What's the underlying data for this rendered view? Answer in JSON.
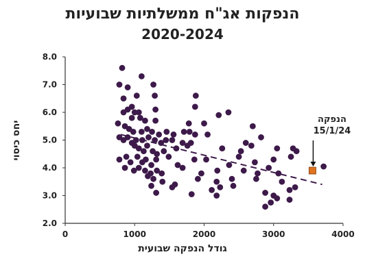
{
  "chart_data": {
    "type": "scatter",
    "title": "הנפקות אג\"ח ממשלתיות שבועיות",
    "subtitle": "2020-2024",
    "xlabel": "גודל הנפקה שבועית",
    "ylabel": "יחס כיסוי",
    "xlim": [
      0,
      4000
    ],
    "ylim": [
      2.0,
      8.0
    ],
    "xticks": [
      "0",
      "1000",
      "2000",
      "3000",
      "4000"
    ],
    "yticks": [
      "2.0",
      "3.0",
      "4.0",
      "5.0",
      "6.0",
      "7.0",
      "8.0"
    ],
    "grid": false,
    "colors": {
      "points": "#3d1a4a",
      "highlight": "#e0731f",
      "trend": "#3d1a4a"
    },
    "highlight_point": {
      "x": 3560,
      "y": 3.9
    },
    "annotation": [
      "הנפקה",
      "15/1/24"
    ],
    "trendline": {
      "x": [
        800,
        3700
      ],
      "y": [
        5.2,
        3.4
      ]
    },
    "points": [
      [
        820,
        7.6
      ],
      [
        1100,
        7.3
      ],
      [
        780,
        7.0
      ],
      [
        1270,
        7.0
      ],
      [
        900,
        6.9
      ],
      [
        840,
        6.5
      ],
      [
        1030,
        6.6
      ],
      [
        1290,
        6.6
      ],
      [
        1880,
        6.6
      ],
      [
        960,
        6.2
      ],
      [
        840,
        6.0
      ],
      [
        900,
        6.1
      ],
      [
        1000,
        6.0
      ],
      [
        1060,
        6.0
      ],
      [
        1300,
        6.1
      ],
      [
        1870,
        6.2
      ],
      [
        2350,
        6.0
      ],
      [
        960,
        5.8
      ],
      [
        1080,
        5.8
      ],
      [
        1150,
        5.7
      ],
      [
        1300,
        5.7
      ],
      [
        1780,
        5.6
      ],
      [
        2000,
        5.6
      ],
      [
        2210,
        5.9
      ],
      [
        760,
        5.6
      ],
      [
        860,
        5.5
      ],
      [
        920,
        5.4
      ],
      [
        980,
        5.3
      ],
      [
        1100,
        5.3
      ],
      [
        1180,
        5.4
      ],
      [
        1250,
        5.3
      ],
      [
        1350,
        5.2
      ],
      [
        1460,
        5.3
      ],
      [
        1560,
        5.2
      ],
      [
        1710,
        5.3
      ],
      [
        1790,
        5.3
      ],
      [
        1870,
        5.2
      ],
      [
        2050,
        5.2
      ],
      [
        2700,
        5.5
      ],
      [
        780,
        5.1
      ],
      [
        840,
        5.0
      ],
      [
        900,
        5.1
      ],
      [
        960,
        4.9
      ],
      [
        1020,
        5.0
      ],
      [
        1110,
        5.0
      ],
      [
        1200,
        5.1
      ],
      [
        1290,
        5.0
      ],
      [
        1380,
        4.9
      ],
      [
        1450,
        5.0
      ],
      [
        1540,
        5.0
      ],
      [
        1690,
        4.9
      ],
      [
        1810,
        4.9
      ],
      [
        2600,
        4.9
      ],
      [
        2820,
        5.1
      ],
      [
        1000,
        4.8
      ],
      [
        1060,
        4.7
      ],
      [
        1130,
        4.6
      ],
      [
        1180,
        4.8
      ],
      [
        1260,
        4.6
      ],
      [
        1320,
        4.5
      ],
      [
        1420,
        4.6
      ],
      [
        1600,
        4.7
      ],
      [
        1760,
        4.8
      ],
      [
        2260,
        4.7
      ],
      [
        2530,
        4.6
      ],
      [
        2680,
        4.8
      ],
      [
        3050,
        4.7
      ],
      [
        3280,
        4.7
      ],
      [
        780,
        4.3
      ],
      [
        880,
        4.4
      ],
      [
        940,
        4.2
      ],
      [
        1040,
        4.4
      ],
      [
        1110,
        4.2
      ],
      [
        1160,
        4.3
      ],
      [
        1240,
        4.1
      ],
      [
        1310,
        4.3
      ],
      [
        1490,
        4.4
      ],
      [
        1620,
        4.1
      ],
      [
        1860,
        4.3
      ],
      [
        2030,
        4.3
      ],
      [
        2360,
        4.1
      ],
      [
        2500,
        4.4
      ],
      [
        2730,
        4.2
      ],
      [
        3000,
        4.3
      ],
      [
        3250,
        4.4
      ],
      [
        3330,
        4.6
      ],
      [
        860,
        4.0
      ],
      [
        990,
        3.9
      ],
      [
        1060,
        4.0
      ],
      [
        1150,
        3.9
      ],
      [
        1230,
        3.8
      ],
      [
        1320,
        3.9
      ],
      [
        1390,
        3.8
      ],
      [
        1690,
        4.0
      ],
      [
        1960,
        3.8
      ],
      [
        2190,
        3.9
      ],
      [
        2570,
        3.9
      ],
      [
        2770,
        3.8
      ],
      [
        2930,
        4.0
      ],
      [
        3070,
        3.8
      ],
      [
        3720,
        4.05
      ],
      [
        1190,
        3.7
      ],
      [
        1270,
        3.6
      ],
      [
        1400,
        3.5
      ],
      [
        1580,
        3.4
      ],
      [
        1910,
        3.6
      ],
      [
        2180,
        3.5
      ],
      [
        2400,
        3.6
      ],
      [
        2750,
        3.6
      ],
      [
        3120,
        3.5
      ],
      [
        1240,
        3.35
      ],
      [
        1540,
        3.3
      ],
      [
        2230,
        3.3
      ],
      [
        2420,
        3.35
      ],
      [
        3310,
        3.3
      ],
      [
        1310,
        3.1
      ],
      [
        1820,
        3.05
      ],
      [
        2110,
        3.2
      ],
      [
        2180,
        3.0
      ],
      [
        2880,
        3.1
      ],
      [
        3000,
        3.0
      ],
      [
        3230,
        3.2
      ],
      [
        2960,
        2.75
      ],
      [
        2880,
        2.6
      ],
      [
        3230,
        2.85
      ],
      [
        3050,
        2.9
      ]
    ]
  }
}
